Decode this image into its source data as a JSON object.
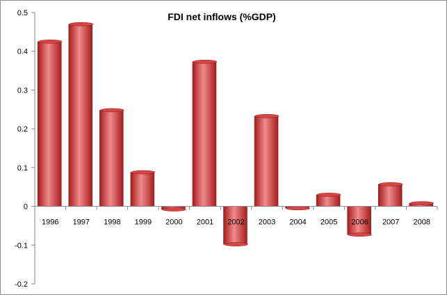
{
  "chart_data": {
    "type": "bar",
    "title": "FDI net inflows (%GDP)",
    "xlabel": "",
    "ylabel": "",
    "categories": [
      "1996",
      "1997",
      "1998",
      "1999",
      "2000",
      "2001",
      "2002",
      "2003",
      "2004",
      "2005",
      "2006",
      "2007",
      "2008"
    ],
    "values": [
      0.425,
      0.47,
      0.248,
      0.088,
      -0.008,
      0.373,
      -0.098,
      0.233,
      -0.005,
      0.03,
      -0.073,
      0.057,
      0.008
    ],
    "ylim": [
      -0.2,
      0.5
    ],
    "yticks": [
      -0.2,
      -0.1,
      0,
      0.1,
      0.2,
      0.3,
      0.4,
      0.5
    ],
    "ytick_labels": [
      "-0.2",
      "-0.1",
      "0",
      "0.1",
      "0.2",
      "0.3",
      "0.4",
      "0.5"
    ],
    "grid": false,
    "legend": "none",
    "colors": {
      "bar_dark": "#a51c1c",
      "bar_mid": "#d94545",
      "bar_light": "#f08a8a",
      "axis": "#868686"
    }
  }
}
